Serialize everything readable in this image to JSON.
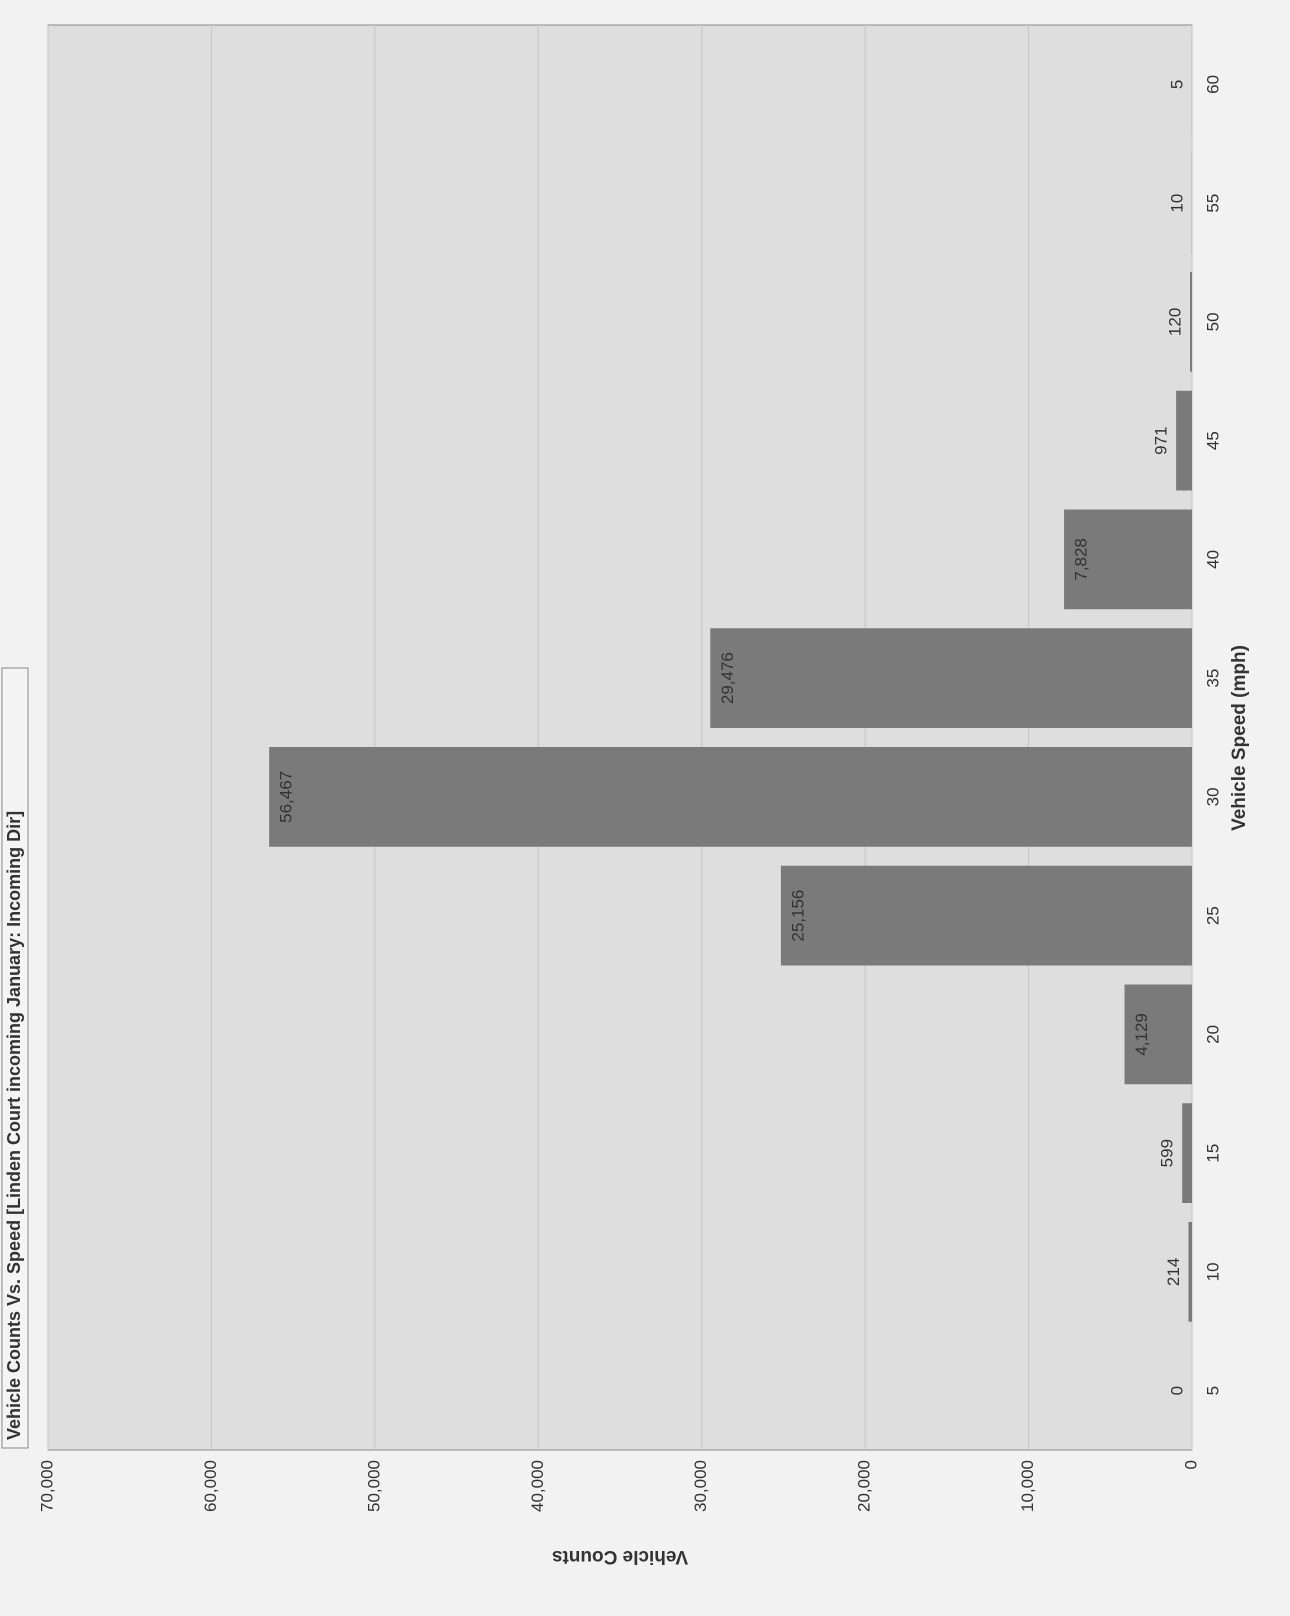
{
  "chart_data": {
    "type": "bar",
    "title": "Vehicle Counts Vs. Speed [Linden Court incoming January: Incoming Dir]",
    "x_label": "Vehicle Speed (mph)",
    "y_label": "Vehicle Counts",
    "categories": [
      "5",
      "10",
      "15",
      "20",
      "25",
      "30",
      "35",
      "40",
      "45",
      "50",
      "55",
      "60"
    ],
    "values": [
      0,
      214,
      599,
      4129,
      25156,
      56467,
      29476,
      7828,
      971,
      120,
      10,
      5
    ],
    "value_labels": [
      "0",
      "214",
      "599",
      "4,129",
      "25,156",
      "56,467",
      "29,476",
      "7,828",
      "971",
      "120",
      "10",
      "5"
    ],
    "color": "#7a7a7a",
    "ylim": [
      0,
      70000
    ],
    "yticks": [
      0,
      {
        "value": 10000,
        "label": "10,000"
      },
      {
        "value": 20000,
        "label": "20,000"
      },
      {
        "value": 30000,
        "label": "30,000"
      },
      {
        "value": 40000,
        "label": "40,000"
      },
      {
        "value": 50000,
        "label": "50,000"
      },
      {
        "value": 60000,
        "label": "60,000"
      },
      {
        "value": 70000,
        "label": "70,000"
      }
    ],
    "grid": true
  }
}
